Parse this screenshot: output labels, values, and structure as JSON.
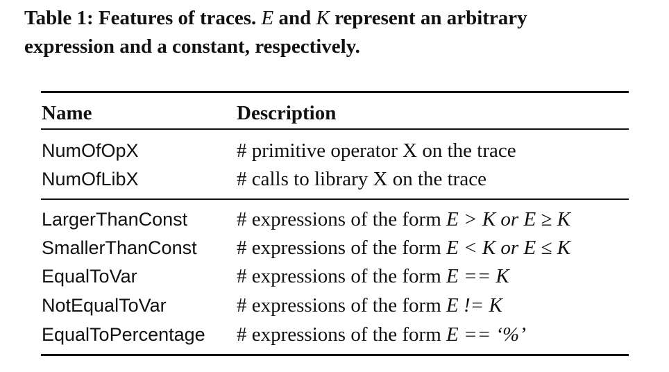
{
  "caption": {
    "label": "Table 1:",
    "part1": "Features of traces.",
    "var_e": "E",
    "part2": "and",
    "var_k": "K",
    "part3": "represent an arbitrary",
    "line2": "expression and a constant, respectively."
  },
  "table": {
    "headers": {
      "name": "Name",
      "description": "Description"
    },
    "group1": [
      {
        "name": "NumOfOpX",
        "desc": "# primitive operator X on the trace"
      },
      {
        "name": "NumOfLibX",
        "desc": "# calls to library X on the trace"
      }
    ],
    "group2": [
      {
        "name": "LargerThanConst",
        "prefix": "# expressions of the form",
        "expr": "E > K or E ≥ K"
      },
      {
        "name": "SmallerThanConst",
        "prefix": "# expressions of the form",
        "expr": "E < K or E ≤ K"
      },
      {
        "name": "EqualToVar",
        "prefix": "# expressions of the form",
        "expr": "E == K"
      },
      {
        "name": "NotEqualToVar",
        "prefix": "# expressions of the form",
        "expr": "E != K"
      },
      {
        "name": "EqualToPercentage",
        "prefix": "# expressions of the form",
        "expr": "E == ‘%’"
      }
    ]
  }
}
